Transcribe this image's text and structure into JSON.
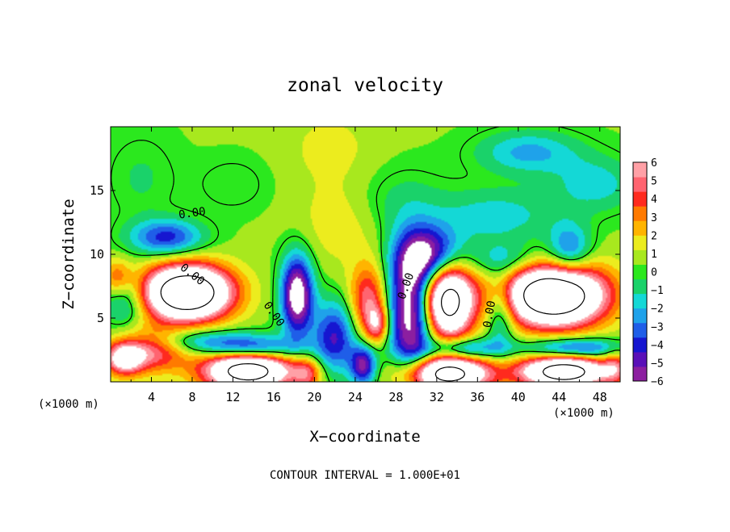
{
  "chart_data": {
    "type": "heatmap",
    "title": "zonal velocity",
    "xlabel": "X−coordinate",
    "ylabel": "Z−coordinate",
    "x_unit_left": "(×1000 m)",
    "x_unit_right": "(×1000 m)",
    "footer": "CONTOUR INTERVAL = 1.000E+01",
    "xlim": [
      0,
      50
    ],
    "ylim": [
      0,
      20
    ],
    "x_ticks": [
      4,
      8,
      12,
      16,
      20,
      24,
      28,
      32,
      36,
      40,
      44,
      48
    ],
    "y_ticks": [
      5,
      10,
      15
    ],
    "contour_labels": [
      {
        "text": "0.00",
        "x": 8.0,
        "y": 13.2,
        "angle": 8
      },
      {
        "text": "0.00",
        "x": 8.0,
        "y": 8.4,
        "angle": -38
      },
      {
        "text": "0.00",
        "x": 16.0,
        "y": 5.3,
        "angle": -55
      },
      {
        "text": "0.00",
        "x": 29.0,
        "y": 7.5,
        "angle": 70
      },
      {
        "text": "0.00",
        "x": 37.2,
        "y": 5.3,
        "angle": 80
      }
    ],
    "colorbar": {
      "min": -6,
      "max": 6,
      "tick_labels": [
        "6",
        "5",
        "4",
        "3",
        "2",
        "1",
        "0",
        "−1",
        "−2",
        "−3",
        "−4",
        "−5",
        "−6"
      ],
      "colors": [
        "#8c1fa0",
        "#5a10b8",
        "#1616d0",
        "#1f5ee8",
        "#1fa2ea",
        "#14d8d6",
        "#1ad26a",
        "#2be81e",
        "#a8e81e",
        "#ecec1e",
        "#ffb400",
        "#ff7a00",
        "#ff2a1e",
        "#ff6470",
        "#ffa0a6"
      ]
    },
    "field_base": 0.5,
    "field": [
      {
        "x": 7.5,
        "y": 7.0,
        "amp": 14,
        "sx": 3.0,
        "sy": 1.5
      },
      {
        "x": 13.5,
        "y": 0.9,
        "amp": 12,
        "sx": 3.0,
        "sy": 1.1
      },
      {
        "x": 4.0,
        "y": 2.5,
        "amp": 5,
        "sx": 2.5,
        "sy": 1.2
      },
      {
        "x": 1.3,
        "y": 1.8,
        "amp": 6,
        "sx": 1.3,
        "sy": 0.9
      },
      {
        "x": 0.6,
        "y": 8.2,
        "amp": 3,
        "sx": 1.0,
        "sy": 1.0
      },
      {
        "x": 25.3,
        "y": 6.3,
        "amp": 4.8,
        "sx": 1.3,
        "sy": 2.0
      },
      {
        "x": 26.2,
        "y": 4.5,
        "amp": 4,
        "sx": 0.8,
        "sy": 1.0
      },
      {
        "x": 19.3,
        "y": 0.6,
        "amp": 3.5,
        "sx": 1.0,
        "sy": 0.9
      },
      {
        "x": 33.0,
        "y": 6.5,
        "amp": 12,
        "sx": 1.8,
        "sy": 2.2
      },
      {
        "x": 33.0,
        "y": 0.6,
        "amp": 11,
        "sx": 3.0,
        "sy": 1.0
      },
      {
        "x": 43.5,
        "y": 6.8,
        "amp": 14,
        "sx": 3.5,
        "sy": 1.7
      },
      {
        "x": 44.5,
        "y": 0.8,
        "amp": 12,
        "sx": 3.0,
        "sy": 0.9
      },
      {
        "x": 49.5,
        "y": 1.2,
        "amp": 3,
        "sx": 0.8,
        "sy": 1.0
      },
      {
        "x": 22.8,
        "y": 12.8,
        "amp": 1.6,
        "sx": 3.0,
        "sy": 2.5
      },
      {
        "x": 21.5,
        "y": 18.5,
        "amp": 1.0,
        "sx": 3.0,
        "sy": 2.0
      },
      {
        "x": 18.3,
        "y": 6.8,
        "amp": -8,
        "sx": 1.1,
        "sy": 2.2
      },
      {
        "x": 29.5,
        "y": 5.5,
        "amp": -8,
        "sx": 1.6,
        "sy": 3.5
      },
      {
        "x": 31.5,
        "y": 9.8,
        "amp": -7,
        "sx": 2.2,
        "sy": 1.6
      },
      {
        "x": 38.3,
        "y": 5.5,
        "amp": -3.5,
        "sx": 1.0,
        "sy": 2.0
      },
      {
        "x": 22.0,
        "y": 3.5,
        "amp": -5,
        "sx": 1.5,
        "sy": 2.0
      },
      {
        "x": 24.8,
        "y": 1.3,
        "amp": -6,
        "sx": 0.9,
        "sy": 1.1
      },
      {
        "x": 5.5,
        "y": 11.3,
        "amp": -4.5,
        "sx": 2.5,
        "sy": 1.0
      },
      {
        "x": 1.5,
        "y": 6.3,
        "amp": -3,
        "sx": 1.5,
        "sy": 1.5
      },
      {
        "x": 8.5,
        "y": 3.2,
        "amp": -3,
        "sx": 4.0,
        "sy": 0.7
      },
      {
        "x": 14.0,
        "y": 2.6,
        "amp": -5,
        "sx": 3.0,
        "sy": 0.7
      },
      {
        "x": 45.5,
        "y": 2.6,
        "amp": -5,
        "sx": 3.5,
        "sy": 0.6
      },
      {
        "x": 34.5,
        "y": 2.6,
        "amp": -4.5,
        "sx": 2.5,
        "sy": 0.6
      },
      {
        "x": 45.0,
        "y": 10.2,
        "amp": -4,
        "sx": 1.5,
        "sy": 1.5
      },
      {
        "x": 41.0,
        "y": 18.0,
        "amp": -2.8,
        "sx": 3.5,
        "sy": 1.2
      },
      {
        "x": 47.5,
        "y": 15.5,
        "amp": -2.2,
        "sx": 3.0,
        "sy": 1.5
      },
      {
        "x": 38.0,
        "y": 13.0,
        "amp": -2.2,
        "sx": 4.0,
        "sy": 1.5
      },
      {
        "x": 27.5,
        "y": 14.0,
        "amp": -1.3,
        "sx": 4.0,
        "sy": 2.0
      },
      {
        "x": 3.0,
        "y": 16.0,
        "amp": -1.0,
        "sx": 2.5,
        "sy": 2.5
      },
      {
        "x": 12.0,
        "y": 15.5,
        "amp": -0.9,
        "sx": 2.5,
        "sy": 1.5
      },
      {
        "x": 39.0,
        "y": 9.5,
        "amp": -2.5,
        "sx": 2.5,
        "sy": 1.0
      }
    ]
  }
}
